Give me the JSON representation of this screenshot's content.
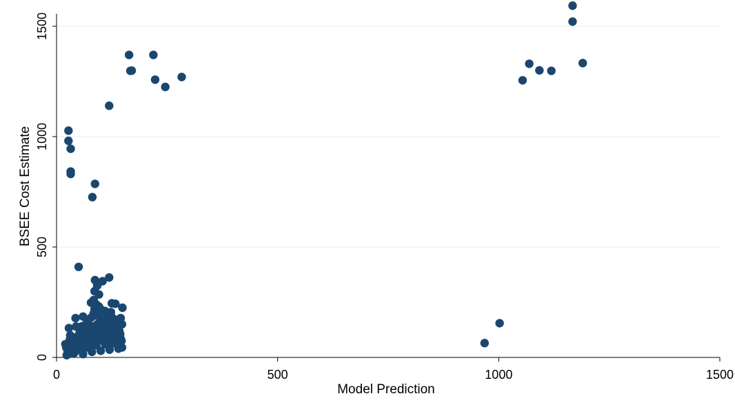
{
  "chart_data": {
    "type": "scatter",
    "title": "",
    "xlabel": "Model Prediction",
    "ylabel": "BSEE Cost Estimate",
    "xlim": [
      0,
      1500
    ],
    "ylim": [
      0,
      1600
    ],
    "xticks": [
      0,
      500,
      1000,
      1500
    ],
    "yticks": [
      0,
      500,
      1000,
      1500
    ],
    "grid": {
      "horizontal": true,
      "vertical": false
    },
    "legend": "none",
    "marker_color": "#1a476f",
    "gridline_color": "#eaf2f3",
    "series": [
      {
        "points": [
          [
            27,
            1027
          ],
          [
            27,
            981
          ],
          [
            32,
            945
          ],
          [
            32,
            842
          ],
          [
            32,
            831
          ],
          [
            87,
            786
          ],
          [
            81,
            726
          ],
          [
            119,
            1140
          ],
          [
            164,
            1370
          ],
          [
            167,
            1298
          ],
          [
            170,
            1299
          ],
          [
            219,
            1370
          ],
          [
            223,
            1258
          ],
          [
            246,
            1225
          ],
          [
            283,
            1270
          ],
          [
            1054,
            1255
          ],
          [
            1069,
            1330
          ],
          [
            1092,
            1300
          ],
          [
            1119,
            1298
          ],
          [
            1167,
            1593
          ],
          [
            1167,
            1521
          ],
          [
            1190,
            1333
          ],
          [
            1002,
            155
          ],
          [
            968,
            65
          ],
          [
            50,
            410
          ],
          [
            119,
            362
          ],
          [
            87,
            350
          ],
          [
            104,
            345
          ],
          [
            92,
            325
          ],
          [
            86,
            300
          ],
          [
            96,
            285
          ],
          [
            78,
            248
          ],
          [
            125,
            245
          ],
          [
            133,
            243
          ],
          [
            149,
            225
          ],
          [
            86,
            220
          ],
          [
            110,
            210
          ],
          [
            123,
            205
          ],
          [
            60,
            185
          ],
          [
            43,
            178
          ],
          [
            145,
            178
          ],
          [
            28,
            133
          ],
          [
            44,
            140
          ],
          [
            70,
            165
          ],
          [
            88,
            190
          ],
          [
            100,
            170
          ],
          [
            115,
            175
          ],
          [
            138,
            160
          ],
          [
            148,
            150
          ],
          [
            20,
            60
          ],
          [
            22,
            45
          ],
          [
            25,
            30
          ],
          [
            27,
            15
          ],
          [
            23,
            10
          ],
          [
            30,
            80
          ],
          [
            35,
            55
          ],
          [
            38,
            25
          ],
          [
            42,
            90
          ],
          [
            46,
            65
          ],
          [
            48,
            35
          ],
          [
            52,
            110
          ],
          [
            55,
            75
          ],
          [
            58,
            40
          ],
          [
            62,
            120
          ],
          [
            65,
            85
          ],
          [
            68,
            50
          ],
          [
            72,
            130
          ],
          [
            75,
            95
          ],
          [
            78,
            60
          ],
          [
            82,
            140
          ],
          [
            85,
            105
          ],
          [
            88,
            70
          ],
          [
            92,
            150
          ],
          [
            95,
            115
          ],
          [
            98,
            80
          ],
          [
            102,
            160
          ],
          [
            105,
            125
          ],
          [
            108,
            90
          ],
          [
            112,
            140
          ],
          [
            115,
            100
          ],
          [
            118,
            65
          ],
          [
            122,
            150
          ],
          [
            125,
            110
          ],
          [
            128,
            75
          ],
          [
            132,
            130
          ],
          [
            135,
            95
          ],
          [
            138,
            55
          ],
          [
            142,
            120
          ],
          [
            145,
            85
          ],
          [
            148,
            45
          ],
          [
            40,
            20
          ],
          [
            60,
            15
          ],
          [
            80,
            25
          ],
          [
            100,
            30
          ],
          [
            120,
            35
          ],
          [
            140,
            40
          ],
          [
            50,
            50
          ],
          [
            70,
            45
          ],
          [
            90,
            55
          ],
          [
            110,
            60
          ],
          [
            130,
            65
          ],
          [
            84,
            260
          ],
          [
            90,
            240
          ],
          [
            96,
            230
          ],
          [
            102,
            215
          ],
          [
            94,
            200
          ],
          [
            106,
            195
          ],
          [
            116,
            185
          ],
          [
            126,
            180
          ],
          [
            136,
            170
          ],
          [
            84,
            200
          ],
          [
            78,
            180
          ],
          [
            72,
            170
          ],
          [
            66,
            150
          ],
          [
            56,
            140
          ],
          [
            104,
            145
          ],
          [
            114,
            120
          ],
          [
            124,
            95
          ],
          [
            134,
            100
          ],
          [
            144,
            105
          ],
          [
            147,
            75
          ],
          [
            143,
            60
          ],
          [
            33,
            35
          ],
          [
            36,
            70
          ],
          [
            31,
            100
          ]
        ]
      }
    ]
  }
}
